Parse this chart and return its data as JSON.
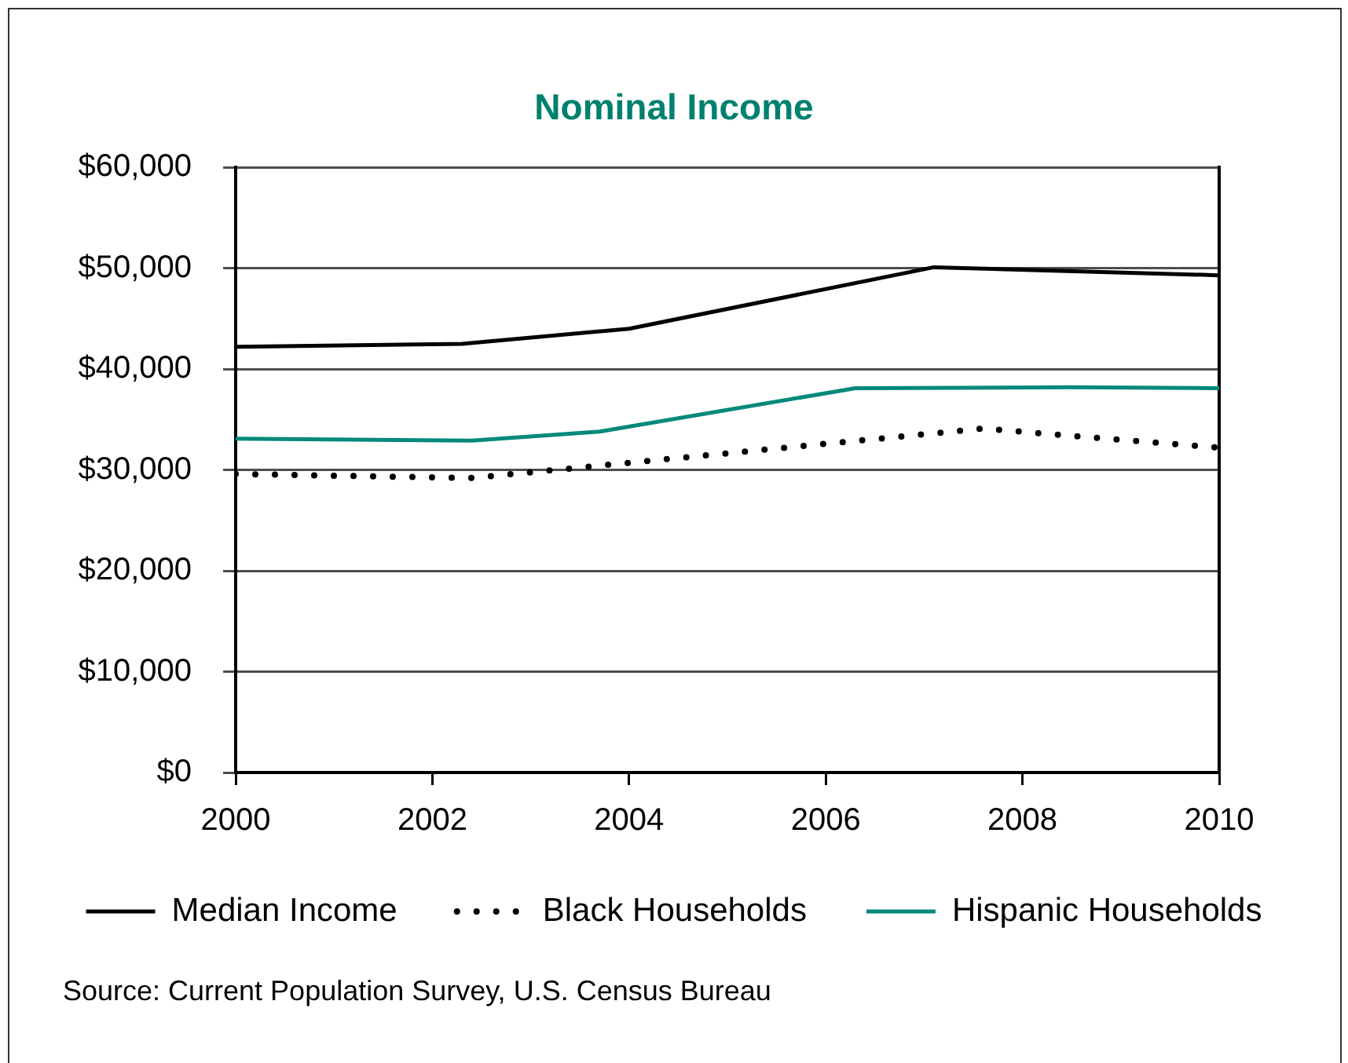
{
  "chart_data": {
    "type": "line",
    "title": "Nominal Income",
    "annotations": [
      "Source: Current Population Survey, U.S. Census Bureau"
    ],
    "series": [
      {
        "name": "Median Income",
        "color": "#000000",
        "line_style": "solid",
        "x": [
          2000,
          2002.3,
          2004,
          2007.1,
          2010
        ],
        "values": [
          42200,
          42500,
          44000,
          50100,
          49300
        ]
      },
      {
        "name": "Black Households",
        "color": "#000000",
        "line_style": "dotted",
        "x": [
          2000,
          2002.4,
          2007.6,
          2010
        ],
        "values": [
          29600,
          29200,
          34100,
          32200
        ]
      },
      {
        "name": "Hispanic Households",
        "color": "#00897b",
        "line_style": "solid",
        "x": [
          2000,
          2002.4,
          2003.7,
          2006.3,
          2008.5,
          2010
        ],
        "values": [
          33100,
          32900,
          33800,
          38100,
          38200,
          38100
        ]
      }
    ],
    "xlim": [
      2000,
      2010
    ],
    "xticks": [
      2000,
      2002,
      2004,
      2006,
      2008,
      2010
    ],
    "ylim": [
      0,
      60000
    ],
    "yticks": [
      {
        "value": 0,
        "label": "$0"
      },
      {
        "value": 10000,
        "label": "$10,000"
      },
      {
        "value": 20000,
        "label": "$20,000"
      },
      {
        "value": 30000,
        "label": "$30,000"
      },
      {
        "value": 40000,
        "label": "$40,000"
      },
      {
        "value": 50000,
        "label": "$50,000"
      },
      {
        "value": 60000,
        "label": "$60,000"
      }
    ],
    "grid": "y",
    "legend": "bottom",
    "marker": "none"
  }
}
